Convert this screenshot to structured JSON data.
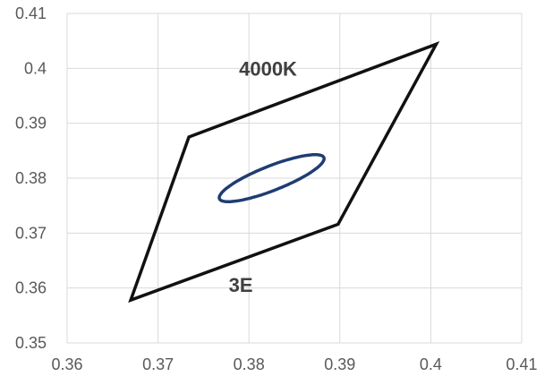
{
  "chart_data": {
    "type": "scatter",
    "title": "",
    "xlabel": "",
    "ylabel": "",
    "xlim": [
      0.36,
      0.41
    ],
    "ylim": [
      0.35,
      0.41
    ],
    "grid": true,
    "legend": "none",
    "x_ticks": [
      0.36,
      0.37,
      0.38,
      0.39,
      0.4,
      0.41
    ],
    "x_tick_labels": [
      "0.36",
      "0.37",
      "0.38",
      "0.39",
      "0.4",
      "0.41"
    ],
    "y_ticks": [
      0.35,
      0.36,
      0.37,
      0.38,
      0.39,
      0.4,
      0.41
    ],
    "y_tick_labels": [
      "0.35",
      "0.36",
      "0.37",
      "0.38",
      "0.39",
      "0.4",
      "0.41"
    ],
    "series": [
      {
        "kind": "quadrangle",
        "color": "#111111",
        "points": [
          {
            "x": 0.3734,
            "y": 0.3875
          },
          {
            "x": 0.4006,
            "y": 0.4044
          },
          {
            "x": 0.3898,
            "y": 0.3716
          },
          {
            "x": 0.367,
            "y": 0.3578
          }
        ]
      },
      {
        "kind": "ellipse",
        "color": "#1f3d73",
        "center": {
          "x": 0.3825,
          "y": 0.38
        },
        "a": 0.0069,
        "b": 0.002,
        "angle_deg": 35
      }
    ],
    "annotations": [
      {
        "text": "4000K",
        "x": 0.3821,
        "y": 0.3987
      },
      {
        "text": "3E",
        "x": 0.3791,
        "y": 0.3593
      }
    ]
  }
}
